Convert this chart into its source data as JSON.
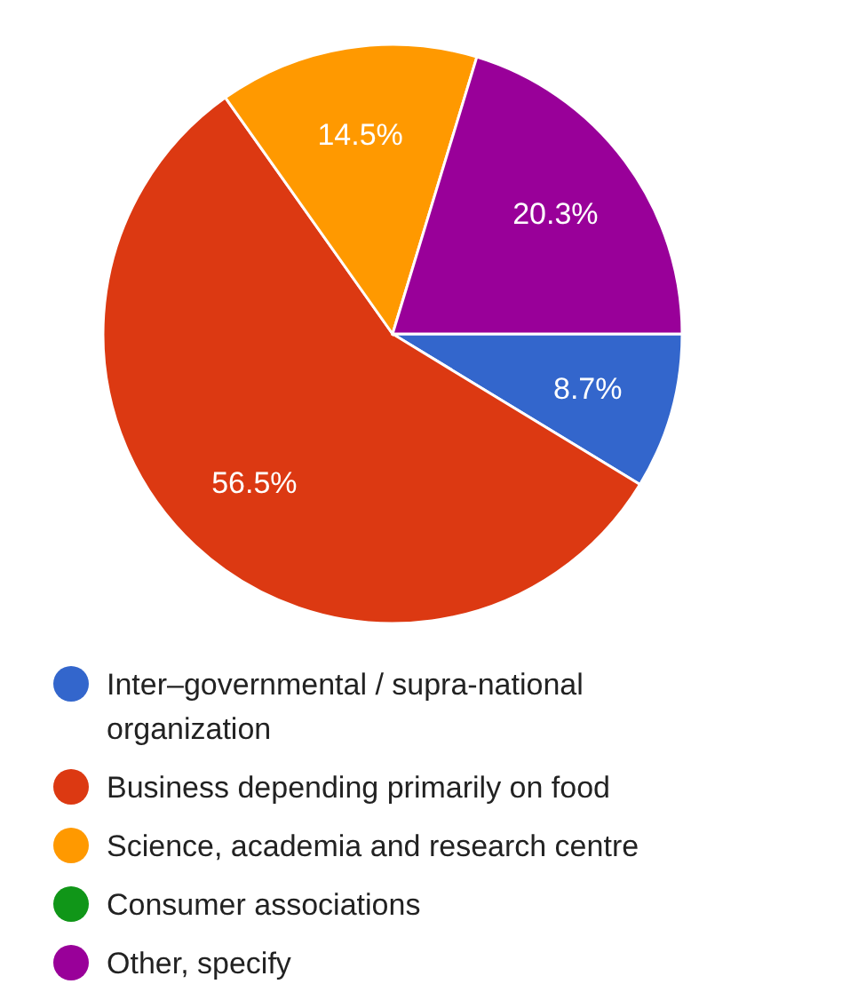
{
  "chart_data": {
    "type": "pie",
    "categories": [
      "Inter–governmental / supra-national organization",
      "Business depending primarily on food",
      "Science, academia and research centre",
      "Consumer associations",
      "Other, specify"
    ],
    "values": [
      8.7,
      56.5,
      14.5,
      0,
      20.3
    ],
    "colors": [
      "#3366cc",
      "#dc3912",
      "#ff9900",
      "#109618",
      "#990099"
    ],
    "value_labels": [
      "8.7%",
      "56.5%",
      "14.5%",
      null,
      "20.3%"
    ],
    "legend": "bottom"
  }
}
